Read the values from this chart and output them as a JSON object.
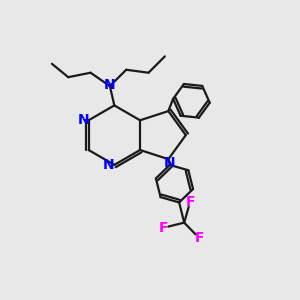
{
  "bg_color": "#e8e8e8",
  "bond_color": "#1a1a1a",
  "N_color": "#0000ff",
  "F_color": "#ff00ff",
  "line_width": 1.6,
  "font_size": 10,
  "figsize": [
    3.0,
    3.0
  ],
  "dpi": 100,
  "xlim": [
    0,
    10
  ],
  "ylim": [
    0,
    10
  ]
}
